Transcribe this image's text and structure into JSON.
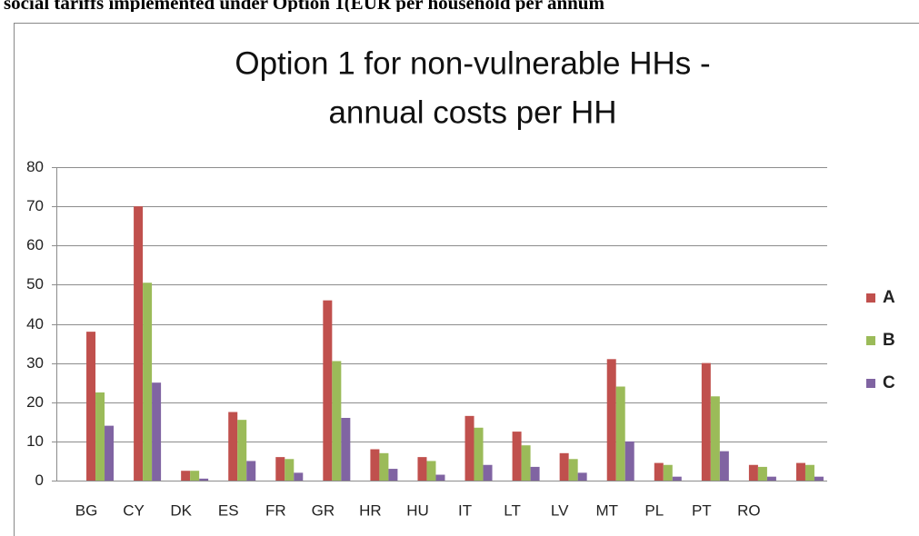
{
  "header": "social tariffs implemented under Option 1(EUR  per household per annum",
  "chart_data": {
    "type": "bar",
    "title": [
      "Option 1 for non-vulnerable HHs -",
      "annual costs per HH"
    ],
    "categories": [
      "BG",
      "CY",
      "DK",
      "ES",
      "FR",
      "GR",
      "HR",
      "HU",
      "IT",
      "LT",
      "LV",
      "MT",
      "PL",
      "PT",
      "RO",
      null
    ],
    "series": [
      {
        "name": "A",
        "color": "#c0504d",
        "values": [
          38,
          70,
          2.5,
          17.5,
          6,
          46,
          8,
          6,
          16.5,
          12.5,
          7,
          31,
          4.5,
          30,
          4,
          4.5
        ]
      },
      {
        "name": "B",
        "color": "#9bbb59",
        "values": [
          22.5,
          50.5,
          2.5,
          15.5,
          5.5,
          30.5,
          7,
          5,
          13.5,
          9,
          5.5,
          24,
          4,
          21.5,
          3.5,
          4
        ]
      },
      {
        "name": "C",
        "color": "#8064a2",
        "values": [
          14,
          25,
          0.5,
          5,
          2,
          16,
          3,
          1.5,
          4,
          3.5,
          2,
          10,
          1,
          7.5,
          1,
          1
        ]
      }
    ],
    "ylim": [
      0,
      80
    ],
    "yticks": [
      0,
      10,
      20,
      30,
      40,
      50,
      60,
      70,
      80
    ],
    "grid": true,
    "legend": "right"
  }
}
